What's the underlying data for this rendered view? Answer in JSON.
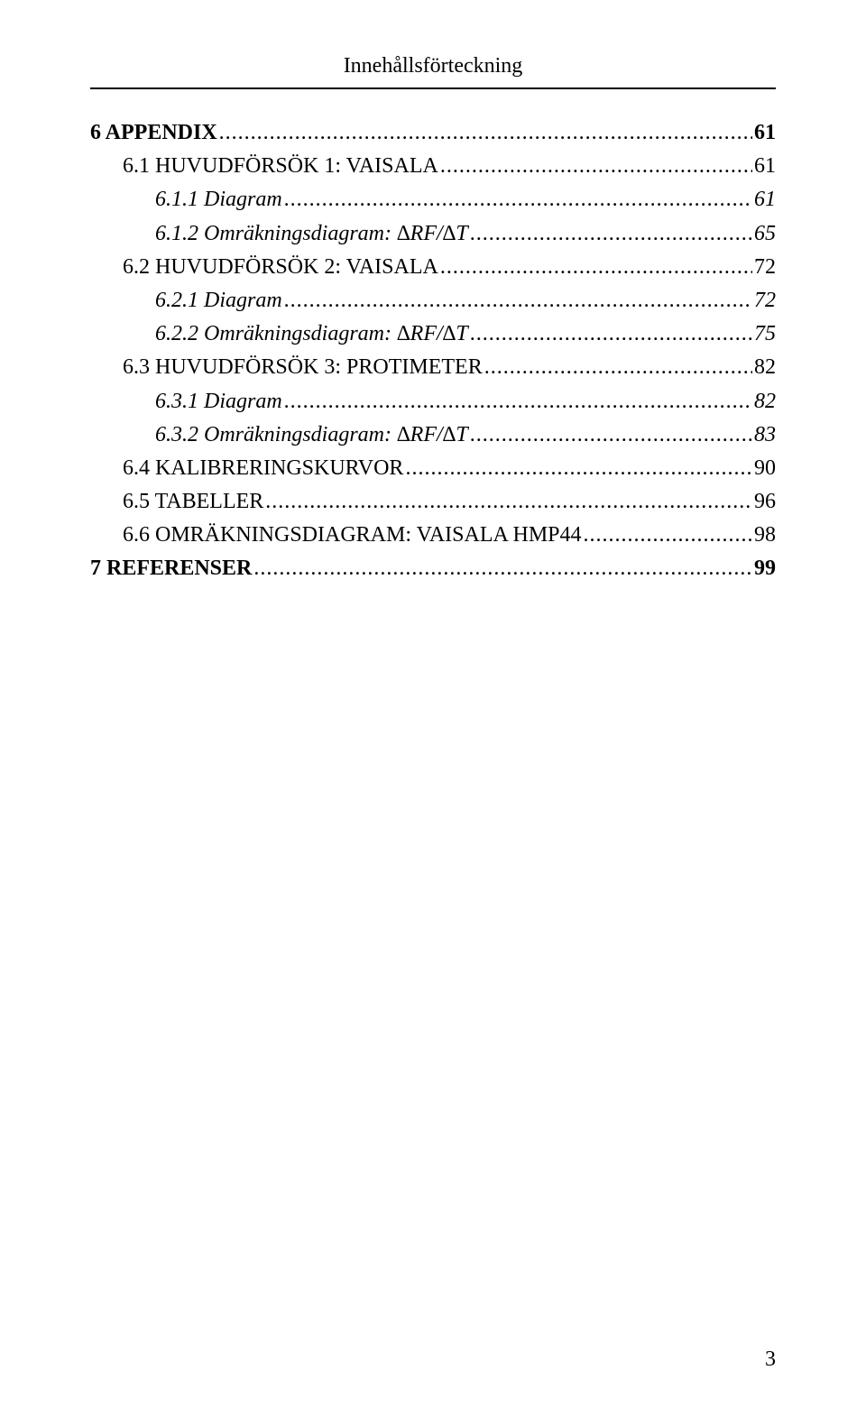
{
  "header": {
    "title": "Innehållsförteckning"
  },
  "toc": {
    "entries": [
      {
        "label": "6 APPENDIX",
        "page": "61",
        "indent": 0,
        "style": "bold",
        "smallcaps": false
      },
      {
        "label": "6.1 HUVUDFÖRSÖK 1: VAISALA",
        "page": "61",
        "indent": 1,
        "style": "normal",
        "smallcaps": true
      },
      {
        "label": "6.1.1 Diagram",
        "page": "61",
        "indent": 2,
        "style": "italic",
        "smallcaps": false
      },
      {
        "label": "6.1.2 Omräkningsdiagram: ∆RF/∆T",
        "page": "65",
        "indent": 2,
        "style": "italic",
        "smallcaps": false
      },
      {
        "label": "6.2 HUVUDFÖRSÖK 2: VAISALA",
        "page": "72",
        "indent": 1,
        "style": "normal",
        "smallcaps": true
      },
      {
        "label": "6.2.1 Diagram",
        "page": "72",
        "indent": 2,
        "style": "italic",
        "smallcaps": false
      },
      {
        "label": "6.2.2 Omräkningsdiagram: ∆RF/∆T",
        "page": "75",
        "indent": 2,
        "style": "italic",
        "smallcaps": false
      },
      {
        "label": "6.3 HUVUDFÖRSÖK 3: PROTIMETER",
        "page": "82",
        "indent": 1,
        "style": "normal",
        "smallcaps": true
      },
      {
        "label": "6.3.1 Diagram",
        "page": "82",
        "indent": 2,
        "style": "italic",
        "smallcaps": false
      },
      {
        "label": "6.3.2 Omräkningsdiagram: ∆RF/∆T",
        "page": "83",
        "indent": 2,
        "style": "italic",
        "smallcaps": false
      },
      {
        "label": "6.4 KALIBRERINGSKURVOR",
        "page": "90",
        "indent": 1,
        "style": "normal",
        "smallcaps": true
      },
      {
        "label": "6.5 TABELLER",
        "page": "96",
        "indent": 1,
        "style": "normal",
        "smallcaps": true
      },
      {
        "label": "6.6 OMRÄKNINGSDIAGRAM: VAISALA HMP44",
        "page": "98",
        "indent": 1,
        "style": "normal",
        "smallcaps": true
      },
      {
        "label": "7 REFERENSER",
        "page": "99",
        "indent": 0,
        "style": "bold",
        "smallcaps": false
      }
    ]
  },
  "footer": {
    "page_number": "3"
  },
  "style": {
    "font_family": "Times New Roman",
    "body_fontsize_pt": 18,
    "text_color": "#000000",
    "background_color": "#ffffff",
    "rule_color": "#000000"
  }
}
